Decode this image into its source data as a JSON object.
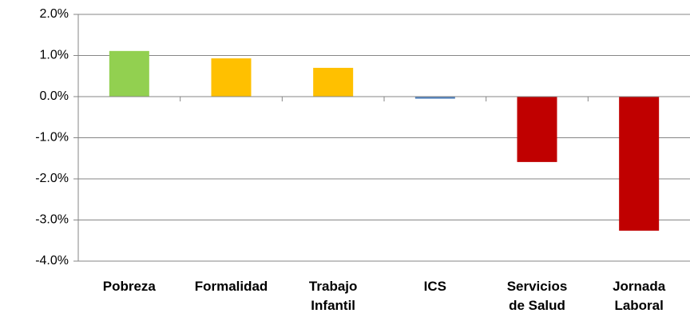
{
  "chart_data": {
    "type": "bar",
    "categories": [
      "Pobreza",
      "Formalidad",
      "Trabajo\nInfantil",
      "ICS",
      "Servicios\nde Salud",
      "Jornada\nLaboral"
    ],
    "values": [
      1.11,
      0.93,
      0.7,
      -0.05,
      -1.59,
      -3.26
    ],
    "colors": [
      "#92d050",
      "#ffc000",
      "#ffc000",
      "#4f81bd",
      "#c00000",
      "#c00000"
    ],
    "ylim": [
      -4,
      2
    ],
    "yticks": [
      {
        "value": -4,
        "label": "-4.0%"
      },
      {
        "value": -3,
        "label": "-3.0%"
      },
      {
        "value": -2,
        "label": "-2.0%"
      },
      {
        "value": -1,
        "label": "-1.0%"
      },
      {
        "value": 0,
        "label": "0.0%"
      },
      {
        "value": 1,
        "label": "1.0%"
      },
      {
        "value": 2,
        "label": "2.0%"
      }
    ],
    "grid": true
  }
}
